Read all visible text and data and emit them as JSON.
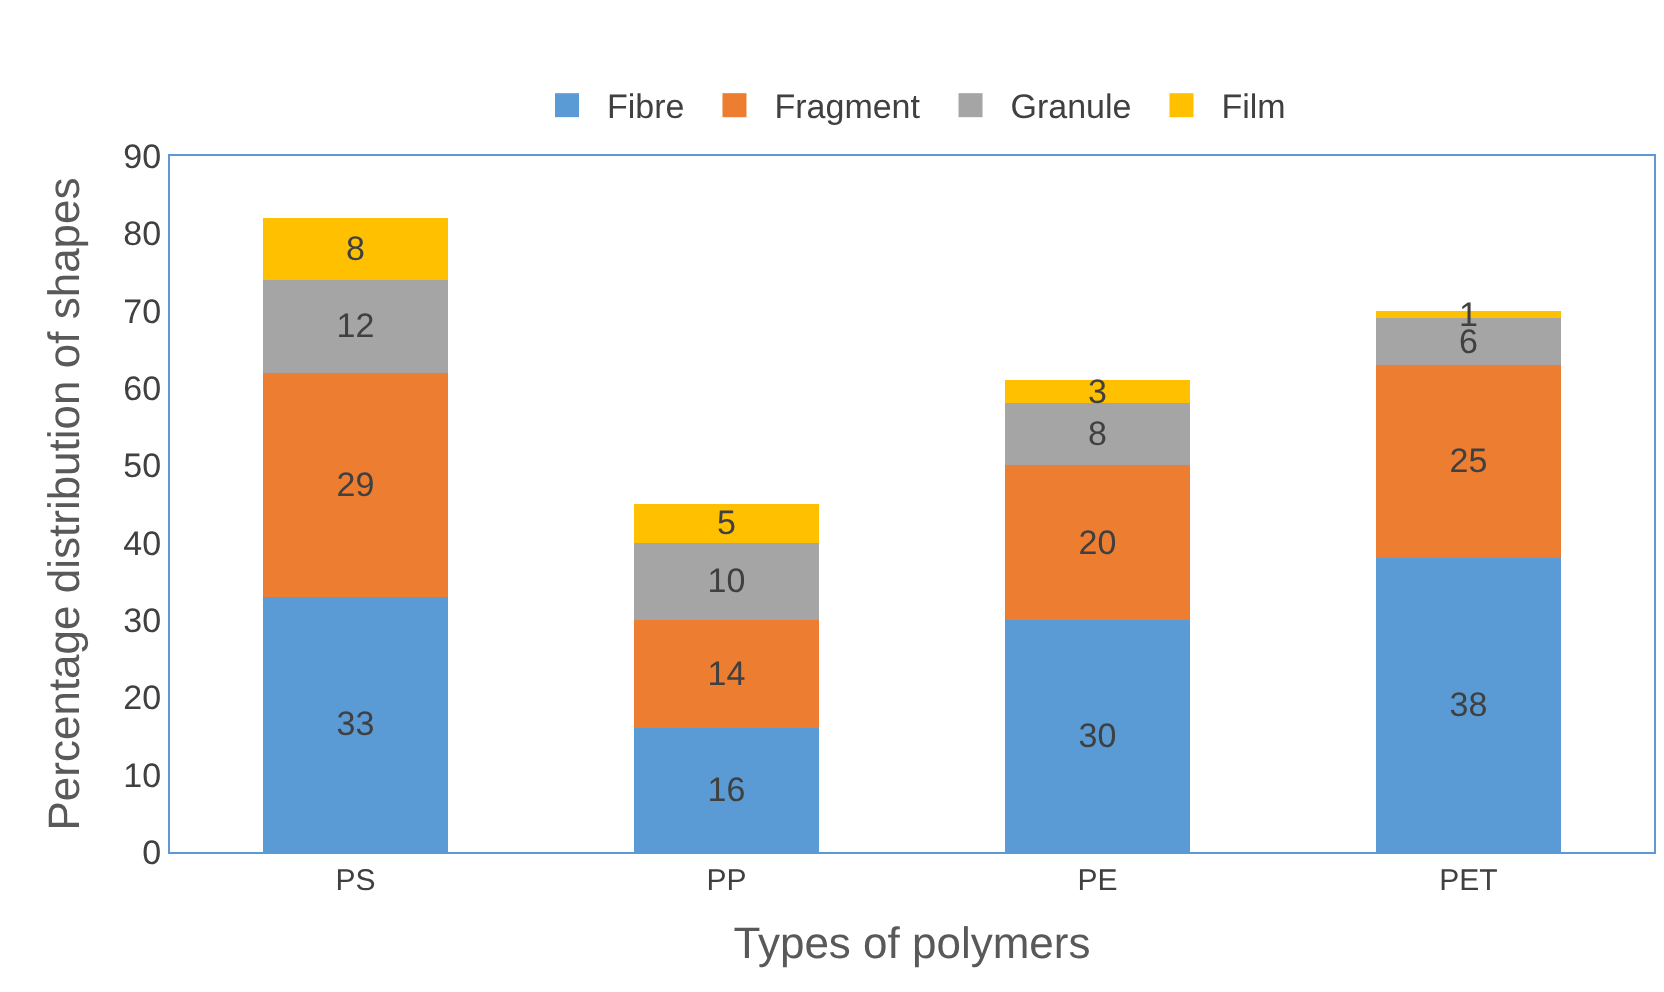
{
  "chart_data": {
    "type": "bar",
    "stacked": true,
    "xlabel": "Types of polymers",
    "ylabel": "Percentage distribution of shapes",
    "categories": [
      "PS",
      "PP",
      "PE",
      "PET"
    ],
    "series": [
      {
        "name": "Fibre",
        "color": "#5b9bd5",
        "values": [
          33,
          16,
          30,
          38
        ]
      },
      {
        "name": "Fragment",
        "color": "#ed7d31",
        "values": [
          29,
          14,
          20,
          25
        ]
      },
      {
        "name": "Granule",
        "color": "#a5a5a5",
        "values": [
          12,
          10,
          8,
          6
        ]
      },
      {
        "name": "Film",
        "color": "#ffc000",
        "values": [
          8,
          5,
          3,
          1
        ]
      }
    ],
    "ylim": [
      0,
      90
    ],
    "yticks": [
      0,
      10,
      20,
      30,
      40,
      50,
      60,
      70,
      80,
      90
    ],
    "data_labels": true,
    "legend": "top"
  }
}
